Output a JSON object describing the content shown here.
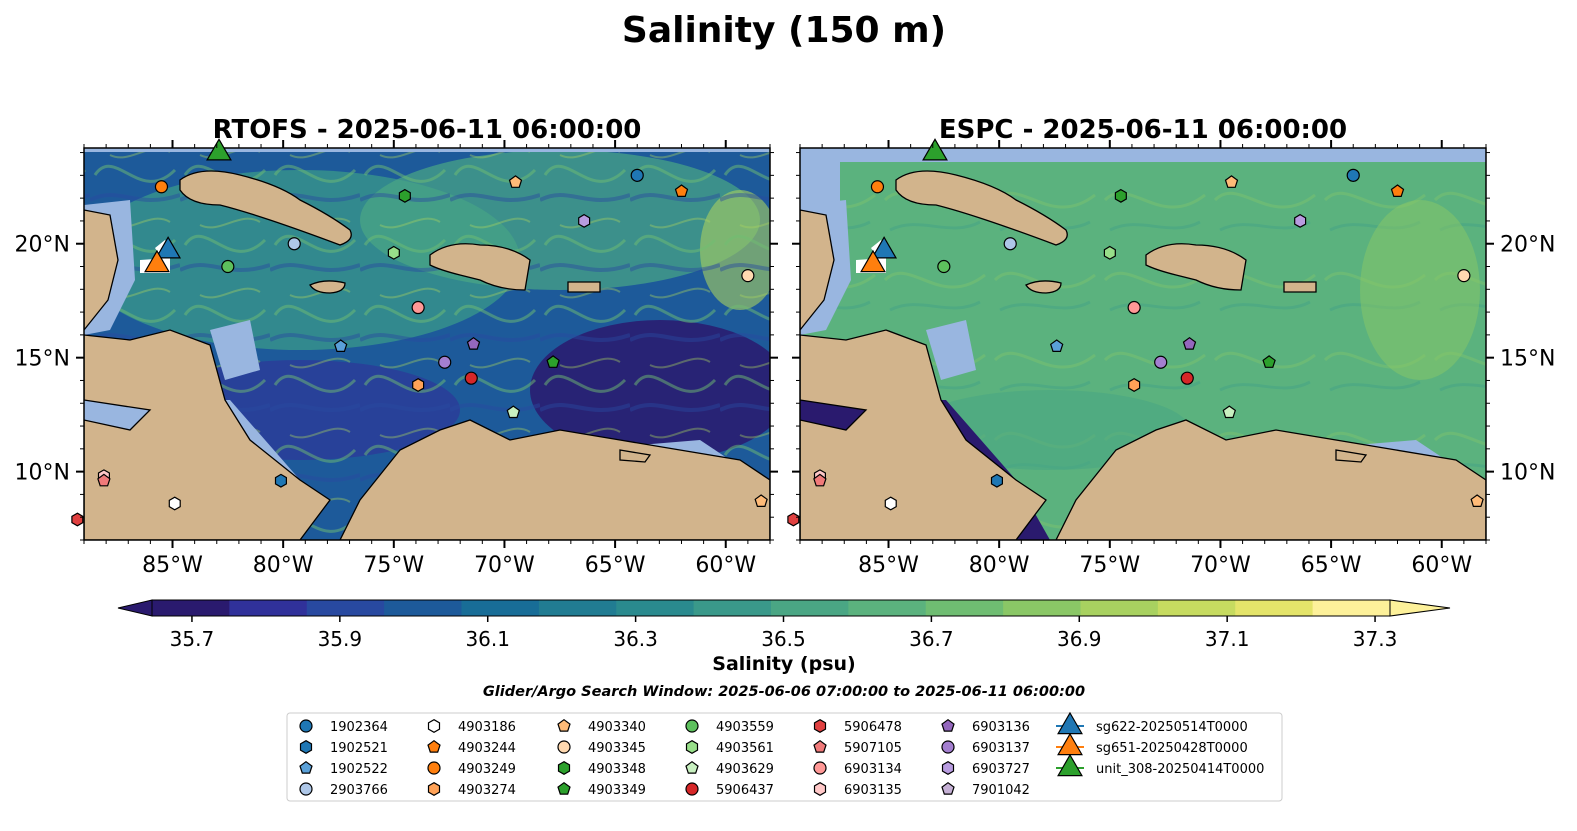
{
  "figure": {
    "title": "Salinity (150 m)",
    "search_window": "Glider/Argo Search Window: 2025-06-06 07:00:00 to 2025-06-11 06:00:00"
  },
  "panels": [
    {
      "id": "rtofs",
      "title": "RTOFS - 2025-06-11 06:00:00"
    },
    {
      "id": "espc",
      "title": "ESPC - 2025-06-11 06:00:00"
    }
  ],
  "map_extent": {
    "lon_min": -89,
    "lon_max": -58,
    "lat_min": 7,
    "lat_max": 24.2
  },
  "lon_ticks": [
    {
      "value": -85,
      "label": "85°W"
    },
    {
      "value": -80,
      "label": "80°W"
    },
    {
      "value": -75,
      "label": "75°W"
    },
    {
      "value": -70,
      "label": "70°W"
    },
    {
      "value": -65,
      "label": "65°W"
    },
    {
      "value": -60,
      "label": "60°W"
    }
  ],
  "lat_ticks": [
    {
      "value": 10,
      "label": "10°N"
    },
    {
      "value": 15,
      "label": "15°N"
    },
    {
      "value": 20,
      "label": "20°N"
    }
  ],
  "colorbar": {
    "label": "Salinity (psu)",
    "min": 35.6,
    "max": 37.4,
    "ticks": [
      {
        "value": 35.7,
        "label": "35.7"
      },
      {
        "value": 35.9,
        "label": "35.9"
      },
      {
        "value": 36.1,
        "label": "36.1"
      },
      {
        "value": 36.3,
        "label": "36.3"
      },
      {
        "value": 36.5,
        "label": "36.5"
      },
      {
        "value": 36.7,
        "label": "36.7"
      },
      {
        "value": 36.9,
        "label": "36.9"
      },
      {
        "value": 37.1,
        "label": "37.1"
      },
      {
        "value": 37.3,
        "label": "37.3"
      }
    ],
    "colors": [
      "#2a1a6e",
      "#30319a",
      "#2849a0",
      "#1d5a9a",
      "#186d97",
      "#217c92",
      "#2a8a8e",
      "#3a998a",
      "#4aa684",
      "#5bb27e",
      "#6fbd72",
      "#8ac766",
      "#a8d160",
      "#c6db60",
      "#e4e46a",
      "#fdf19a"
    ]
  },
  "legend": {
    "columns": [
      [
        {
          "label": "1902364",
          "marker": "circle",
          "color": "#1f77b4"
        },
        {
          "label": "1902521",
          "marker": "hexagon",
          "color": "#1f77b4"
        },
        {
          "label": "1902522",
          "marker": "pentagon",
          "color": "#5aa0d8"
        },
        {
          "label": "2903766",
          "marker": "circle",
          "color": "#aec7e8"
        }
      ],
      [
        {
          "label": "4903186",
          "marker": "hexagon",
          "color": "#ffffff"
        },
        {
          "label": "4903244",
          "marker": "pentagon",
          "color": "#ff7f0e"
        },
        {
          "label": "4903249",
          "marker": "circle",
          "color": "#ff7f0e"
        },
        {
          "label": "4903274",
          "marker": "hexagon",
          "color": "#ffa257"
        }
      ],
      [
        {
          "label": "4903340",
          "marker": "pentagon",
          "color": "#ffbb78"
        },
        {
          "label": "4903345",
          "marker": "circle",
          "color": "#ffd9b0"
        },
        {
          "label": "4903348",
          "marker": "hexagon",
          "color": "#2ca02c"
        },
        {
          "label": "4903349",
          "marker": "pentagon",
          "color": "#2ca02c"
        }
      ],
      [
        {
          "label": "4903559",
          "marker": "circle",
          "color": "#5dc05d"
        },
        {
          "label": "4903561",
          "marker": "hexagon",
          "color": "#98df8a"
        },
        {
          "label": "4903629",
          "marker": "pentagon",
          "color": "#c8f0c0"
        },
        {
          "label": "5906437",
          "marker": "circle",
          "color": "#d62728"
        }
      ],
      [
        {
          "label": "5906478",
          "marker": "hexagon",
          "color": "#e04040"
        },
        {
          "label": "5907105",
          "marker": "pentagon",
          "color": "#f07a7a"
        },
        {
          "label": "6903134",
          "marker": "circle",
          "color": "#ff9896"
        },
        {
          "label": "6903135",
          "marker": "hexagon",
          "color": "#ffc8c8"
        }
      ],
      [
        {
          "label": "6903136",
          "marker": "pentagon",
          "color": "#9467bd"
        },
        {
          "label": "6903137",
          "marker": "circle",
          "color": "#a47fd0"
        },
        {
          "label": "6903727",
          "marker": "hexagon",
          "color": "#b89ce0"
        },
        {
          "label": "7901042",
          "marker": "pentagon",
          "color": "#c5b0d5"
        }
      ],
      [
        {
          "label": "sg622-20250514T0000",
          "marker": "triangle",
          "color": "#1f77b4"
        },
        {
          "label": "sg651-20250428T0000",
          "marker": "triangle",
          "color": "#ff7f0e"
        },
        {
          "label": "unit_308-20250414T0000",
          "marker": "triangle",
          "color": "#2ca02c"
        }
      ]
    ]
  },
  "observations": [
    {
      "id": "1902364",
      "lon": -64,
      "lat": 23.0
    },
    {
      "id": "4903244",
      "lon": -62,
      "lat": 22.3
    },
    {
      "id": "4903249",
      "lon": -85.5,
      "lat": 22.5
    },
    {
      "id": "4903340",
      "lon": -69.5,
      "lat": 22.7
    },
    {
      "id": "4903348",
      "lon": -74.5,
      "lat": 22.1
    },
    {
      "id": "6903727",
      "lon": -66.4,
      "lat": 21.0
    },
    {
      "id": "2903766",
      "lon": -79.5,
      "lat": 20.0
    },
    {
      "id": "4903561",
      "lon": -75.0,
      "lat": 19.6
    },
    {
      "id": "4903559",
      "lon": -82.5,
      "lat": 19.0
    },
    {
      "id": "4903345",
      "lon": -59.0,
      "lat": 18.6
    },
    {
      "id": "6903134",
      "lon": -73.9,
      "lat": 17.2
    },
    {
      "id": "1902522",
      "lon": -77.4,
      "lat": 15.5
    },
    {
      "id": "6903136",
      "lon": -71.4,
      "lat": 15.6
    },
    {
      "id": "6903137",
      "lon": -72.7,
      "lat": 14.8
    },
    {
      "id": "4903349",
      "lon": -67.8,
      "lat": 14.8
    },
    {
      "id": "5906437",
      "lon": -71.5,
      "lat": 14.1
    },
    {
      "id": "4903274",
      "lon": -73.9,
      "lat": 13.8
    },
    {
      "id": "4903629",
      "lon": -69.6,
      "lat": 12.6
    },
    {
      "id": "1902521",
      "lon": -80.1,
      "lat": 9.6
    },
    {
      "id": "6903135",
      "lon": -88.1,
      "lat": 9.8
    },
    {
      "id": "5907105",
      "lon": -88.1,
      "lat": 9.6
    },
    {
      "id": "4903186",
      "lon": -84.9,
      "lat": 8.6
    },
    {
      "id": "5906478",
      "lon": -89.3,
      "lat": 7.9
    },
    {
      "id": "4903340",
      "lon": -58.4,
      "lat": 8.7
    }
  ],
  "gliders": [
    {
      "id": "sg622-20250514T0000",
      "lon": -85.2,
      "lat": 19.8
    },
    {
      "id": "sg651-20250428T0000",
      "lon": -85.7,
      "lat": 19.2
    },
    {
      "id": "unit_308-20250414T0000",
      "lon": -82.9,
      "lat": 24.1
    }
  ]
}
